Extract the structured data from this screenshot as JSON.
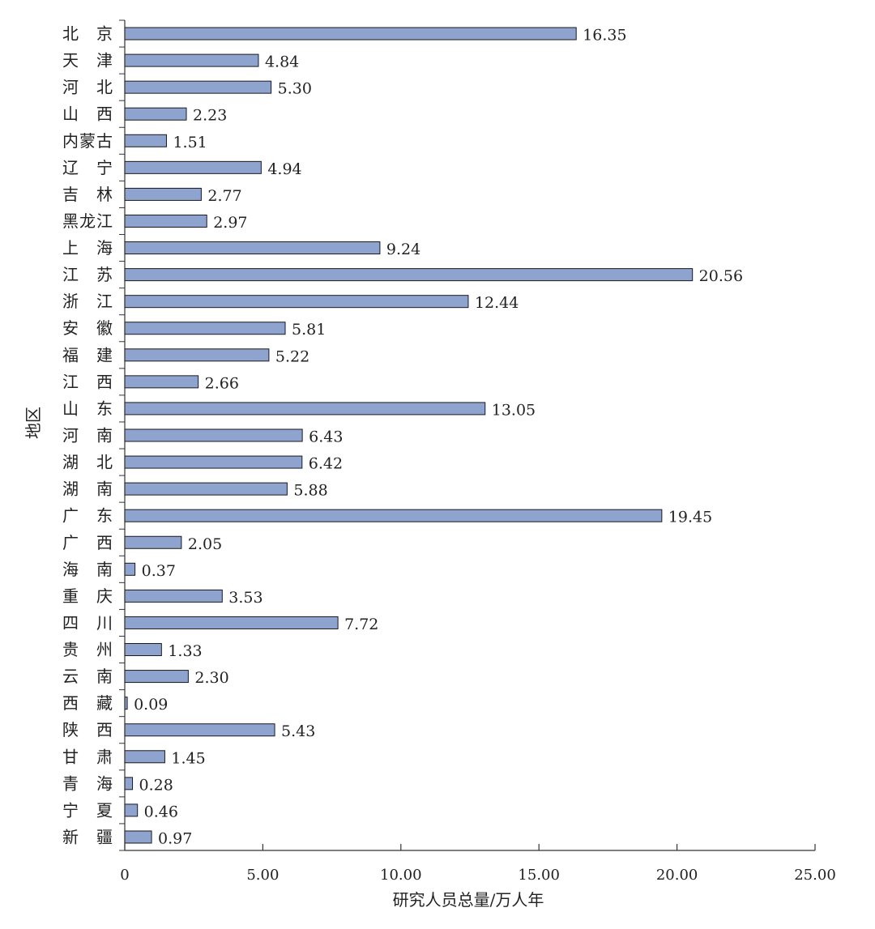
{
  "chart_data": {
    "type": "bar",
    "orientation": "horizontal",
    "title": "",
    "xlabel": "研究人员总量/万人年",
    "ylabel": "地区",
    "xlim": [
      0,
      25
    ],
    "x_ticks": [
      "0",
      "5.00",
      "10.00",
      "15.00",
      "20.00",
      "25.00"
    ],
    "x_tick_values": [
      0,
      5,
      10,
      15,
      20,
      25
    ],
    "grid": false,
    "legend": "none",
    "bar_color": "#8fa3cf",
    "bar_edge_color": "#1a1a1a",
    "categories": [
      "北　京",
      "天　津",
      "河　北",
      "山　西",
      "内蒙古",
      "辽　宁",
      "吉　林",
      "黑龙江",
      "上　海",
      "江　苏",
      "浙　江",
      "安　徽",
      "福　建",
      "江　西",
      "山　东",
      "河　南",
      "湖　北",
      "湖　南",
      "广　东",
      "广　西",
      "海　南",
      "重　庆",
      "四　川",
      "贵　州",
      "云　南",
      "西　藏",
      "陕　西",
      "甘　肃",
      "青　海",
      "宁　夏",
      "新　疆"
    ],
    "values": [
      16.35,
      4.84,
      5.3,
      2.23,
      1.51,
      4.94,
      2.77,
      2.97,
      9.24,
      20.56,
      12.44,
      5.81,
      5.22,
      2.66,
      13.05,
      6.43,
      6.42,
      5.88,
      19.45,
      2.05,
      0.37,
      3.53,
      7.72,
      1.33,
      2.3,
      0.09,
      5.43,
      1.45,
      0.28,
      0.46,
      0.97
    ],
    "value_labels": [
      "16.35",
      "4.84",
      "5.30",
      "2.23",
      "1.51",
      "4.94",
      "2.77",
      "2.97",
      "9.24",
      "20.56",
      "12.44",
      "5.81",
      "5.22",
      "2.66",
      "13.05",
      "6.43",
      "6.42",
      "5.88",
      "19.45",
      "2.05",
      "0.37",
      "3.53",
      "7.72",
      "1.33",
      "2.30",
      "0.09",
      "5.43",
      "1.45",
      "0.28",
      "0.46",
      "0.97"
    ]
  }
}
